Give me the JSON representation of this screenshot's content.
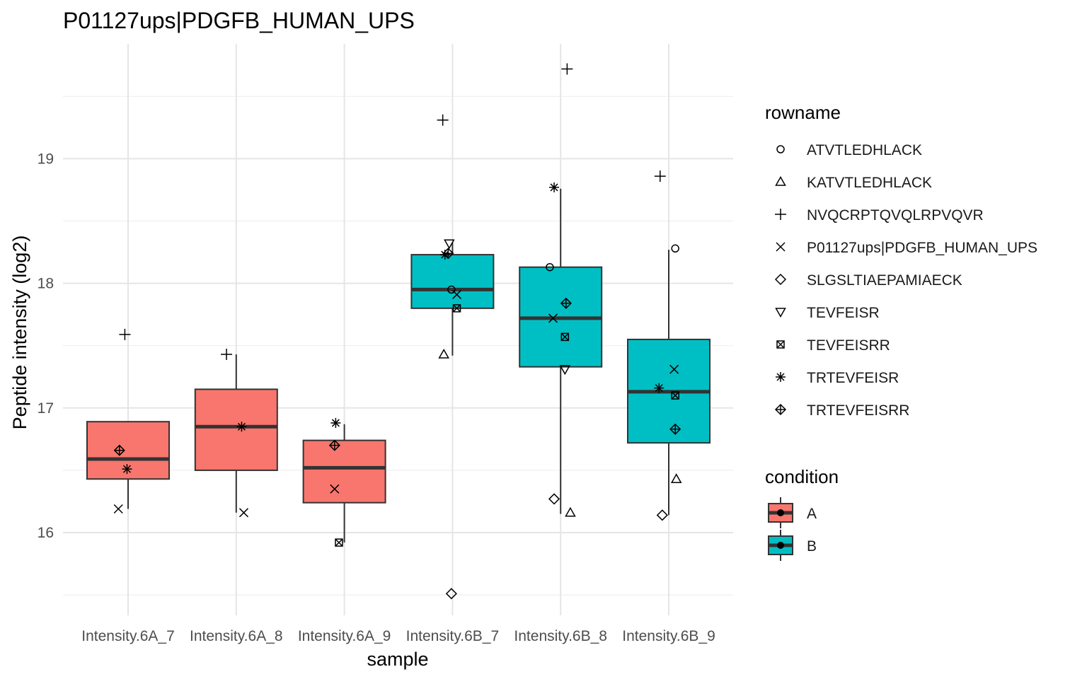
{
  "chart_data": {
    "type": "box",
    "title": "P01127ups|PDGFB_HUMAN_UPS",
    "xlabel": "sample",
    "ylabel": "Peptide intensity (log2)",
    "ylim": [
      15.48,
      19.82
    ],
    "yticks": [
      16,
      17,
      18,
      19
    ],
    "grid": true,
    "legend_position": "right",
    "categories": [
      "Intensity.6A_7",
      "Intensity.6A_8",
      "Intensity.6A_9",
      "Intensity.6B_7",
      "Intensity.6B_8",
      "Intensity.6B_9"
    ],
    "condition_legend": {
      "title": "condition",
      "entries": [
        {
          "name": "A",
          "color": "#F8766D"
        },
        {
          "name": "B",
          "color": "#00BFC4"
        }
      ]
    },
    "shape_legend": {
      "title": "rowname",
      "entries": [
        {
          "name": "ATVTLEDHLACK",
          "shape": "circle"
        },
        {
          "name": "KATVTLEDHLACK",
          "shape": "triangle-up"
        },
        {
          "name": "NVQCRPTQVQLRPVQVR",
          "shape": "plus"
        },
        {
          "name": "P01127ups|PDGFB_HUMAN_UPS",
          "shape": "cross"
        },
        {
          "name": "SLGSLTIAEPAMIAECK",
          "shape": "diamond"
        },
        {
          "name": "TEVFEISR",
          "shape": "triangle-down"
        },
        {
          "name": "TEVFEISRR",
          "shape": "square-cross"
        },
        {
          "name": "TRTEVFEISR",
          "shape": "asterisk"
        },
        {
          "name": "TRTEVFEISRR",
          "shape": "diamond-plus"
        }
      ]
    },
    "boxes": [
      {
        "sample": "Intensity.6A_7",
        "condition": "A",
        "q1": 16.43,
        "median": 16.59,
        "q3": 16.89,
        "whisker_low": 16.19,
        "whisker_high": 16.89
      },
      {
        "sample": "Intensity.6A_8",
        "condition": "A",
        "q1": 16.5,
        "median": 16.85,
        "q3": 17.15,
        "whisker_low": 16.16,
        "whisker_high": 17.43
      },
      {
        "sample": "Intensity.6A_9",
        "condition": "A",
        "q1": 16.24,
        "median": 16.52,
        "q3": 16.74,
        "whisker_low": 15.92,
        "whisker_high": 16.87
      },
      {
        "sample": "Intensity.6B_7",
        "condition": "B",
        "q1": 17.8,
        "median": 17.95,
        "q3": 18.23,
        "whisker_low": 17.42,
        "whisker_high": 18.33
      },
      {
        "sample": "Intensity.6B_8",
        "condition": "B",
        "q1": 17.33,
        "median": 17.72,
        "q3": 18.13,
        "whisker_low": 16.15,
        "whisker_high": 18.76
      },
      {
        "sample": "Intensity.6B_9",
        "condition": "B",
        "q1": 16.72,
        "median": 17.13,
        "q3": 17.55,
        "whisker_low": 16.14,
        "whisker_high": 18.27
      }
    ],
    "points": [
      {
        "sample": "Intensity.6A_7",
        "rowname": "NVQCRPTQVQLRPVQVR",
        "value": 17.59,
        "jitter": -0.03
      },
      {
        "sample": "Intensity.6A_7",
        "rowname": "TRTEVFEISRR",
        "value": 16.66,
        "jitter": -0.08
      },
      {
        "sample": "Intensity.6A_7",
        "rowname": "TRTEVFEISR",
        "value": 16.51,
        "jitter": -0.01
      },
      {
        "sample": "Intensity.6A_7",
        "rowname": "P01127ups|PDGFB_HUMAN_UPS",
        "value": 16.19,
        "jitter": -0.09
      },
      {
        "sample": "Intensity.6A_8",
        "rowname": "NVQCRPTQVQLRPVQVR",
        "value": 17.43,
        "jitter": -0.09
      },
      {
        "sample": "Intensity.6A_8",
        "rowname": "TRTEVFEISR",
        "value": 16.85,
        "jitter": 0.05
      },
      {
        "sample": "Intensity.6A_8",
        "rowname": "P01127ups|PDGFB_HUMAN_UPS",
        "value": 16.16,
        "jitter": 0.07
      },
      {
        "sample": "Intensity.6A_9",
        "rowname": "TRTEVFEISR",
        "value": 16.88,
        "jitter": -0.08
      },
      {
        "sample": "Intensity.6A_9",
        "rowname": "TRTEVFEISRR",
        "value": 16.7,
        "jitter": -0.09
      },
      {
        "sample": "Intensity.6A_9",
        "rowname": "P01127ups|PDGFB_HUMAN_UPS",
        "value": 16.35,
        "jitter": -0.09
      },
      {
        "sample": "Intensity.6A_9",
        "rowname": "TEVFEISRR",
        "value": 15.92,
        "jitter": -0.05
      },
      {
        "sample": "Intensity.6B_7",
        "rowname": "NVQCRPTQVQLRPVQVR",
        "value": 19.31,
        "jitter": -0.09
      },
      {
        "sample": "Intensity.6B_7",
        "rowname": "TEVFEISR",
        "value": 18.32,
        "jitter": -0.03
      },
      {
        "sample": "Intensity.6B_7",
        "rowname": "TRTEVFEISRR",
        "value": 18.24,
        "jitter": -0.04
      },
      {
        "sample": "Intensity.6B_7",
        "rowname": "TRTEVFEISR",
        "value": 18.23,
        "jitter": -0.07
      },
      {
        "sample": "Intensity.6B_7",
        "rowname": "ATVTLEDHLACK",
        "value": 17.95,
        "jitter": -0.01
      },
      {
        "sample": "Intensity.6B_7",
        "rowname": "P01127ups|PDGFB_HUMAN_UPS",
        "value": 17.91,
        "jitter": 0.04
      },
      {
        "sample": "Intensity.6B_7",
        "rowname": "TEVFEISRR",
        "value": 17.8,
        "jitter": 0.04
      },
      {
        "sample": "Intensity.6B_7",
        "rowname": "KATVTLEDHLACK",
        "value": 17.43,
        "jitter": -0.08
      },
      {
        "sample": "Intensity.6B_7",
        "rowname": "SLGSLTIAEPAMIAECK",
        "value": 15.51,
        "jitter": -0.01
      },
      {
        "sample": "Intensity.6B_8",
        "rowname": "NVQCRPTQVQLRPVQVR",
        "value": 19.72,
        "jitter": 0.06
      },
      {
        "sample": "Intensity.6B_8",
        "rowname": "TRTEVFEISR",
        "value": 18.77,
        "jitter": -0.06
      },
      {
        "sample": "Intensity.6B_8",
        "rowname": "ATVTLEDHLACK",
        "value": 18.13,
        "jitter": -0.1
      },
      {
        "sample": "Intensity.6B_8",
        "rowname": "TRTEVFEISRR",
        "value": 17.84,
        "jitter": 0.05
      },
      {
        "sample": "Intensity.6B_8",
        "rowname": "P01127ups|PDGFB_HUMAN_UPS",
        "value": 17.72,
        "jitter": -0.07
      },
      {
        "sample": "Intensity.6B_8",
        "rowname": "TEVFEISRR",
        "value": 17.57,
        "jitter": 0.04
      },
      {
        "sample": "Intensity.6B_8",
        "rowname": "TEVFEISR",
        "value": 17.31,
        "jitter": 0.04
      },
      {
        "sample": "Intensity.6B_8",
        "rowname": "SLGSLTIAEPAMIAECK",
        "value": 16.27,
        "jitter": -0.06
      },
      {
        "sample": "Intensity.6B_8",
        "rowname": "KATVTLEDHLACK",
        "value": 16.16,
        "jitter": 0.09
      },
      {
        "sample": "Intensity.6B_9",
        "rowname": "NVQCRPTQVQLRPVQVR",
        "value": 18.86,
        "jitter": -0.08
      },
      {
        "sample": "Intensity.6B_9",
        "rowname": "ATVTLEDHLACK",
        "value": 18.28,
        "jitter": 0.06
      },
      {
        "sample": "Intensity.6B_9",
        "rowname": "P01127ups|PDGFB_HUMAN_UPS",
        "value": 17.31,
        "jitter": 0.05
      },
      {
        "sample": "Intensity.6B_9",
        "rowname": "TRTEVFEISR",
        "value": 17.16,
        "jitter": -0.09
      },
      {
        "sample": "Intensity.6B_9",
        "rowname": "TEVFEISRR",
        "value": 17.1,
        "jitter": 0.06
      },
      {
        "sample": "Intensity.6B_9",
        "rowname": "TRTEVFEISRR",
        "value": 16.83,
        "jitter": 0.06
      },
      {
        "sample": "Intensity.6B_9",
        "rowname": "KATVTLEDHLACK",
        "value": 16.43,
        "jitter": 0.07
      },
      {
        "sample": "Intensity.6B_9",
        "rowname": "SLGSLTIAEPAMIAECK",
        "value": 16.14,
        "jitter": -0.06
      }
    ]
  }
}
